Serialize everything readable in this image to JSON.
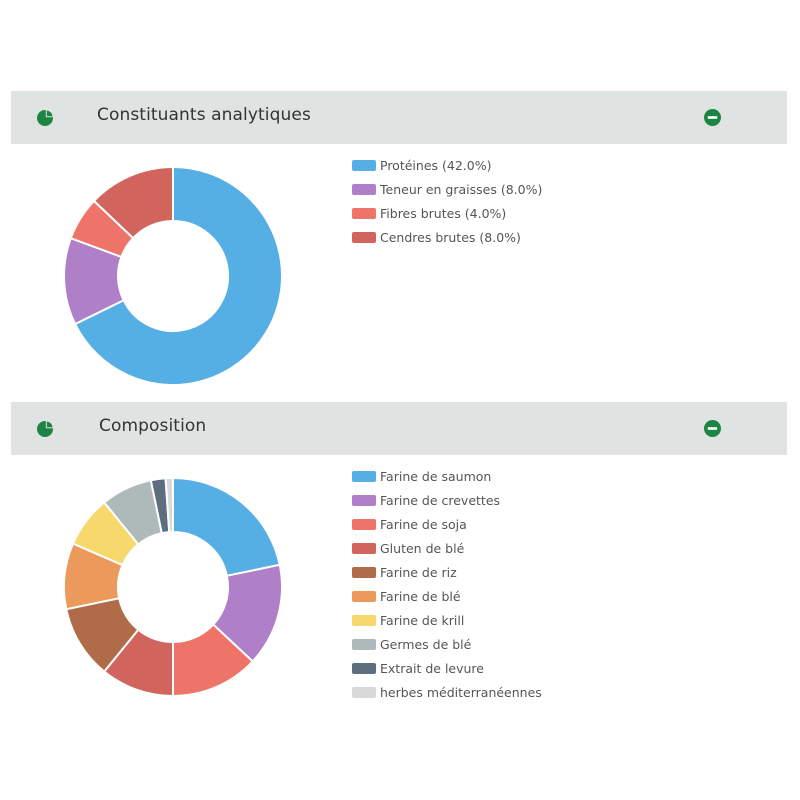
{
  "panels": [
    {
      "title": "Constituants analytiques",
      "icon": "pie-chart-icon",
      "collapse_icon": "minus-circle-icon",
      "icon_color": "#1e8443"
    },
    {
      "title": "Composition",
      "icon": "pie-chart-icon",
      "collapse_icon": "minus-circle-icon",
      "icon_color": "#1e8443"
    }
  ],
  "chart_data": [
    {
      "type": "pie",
      "donut": true,
      "categories": [
        "Protéines",
        "Teneur en graisses",
        "Fibres brutes",
        "Cendres brutes"
      ],
      "values": [
        42.0,
        8.0,
        4.0,
        8.0
      ],
      "legend_labels": [
        "Protéines (42.0%)",
        "Teneur en graisses (8.0%)",
        "Fibres brutes (4.0%)",
        "Cendres brutes (8.0%)"
      ],
      "colors": [
        "#55aee4",
        "#af7fc8",
        "#ee7469",
        "#d1655d"
      ],
      "legend_position": "right"
    },
    {
      "type": "pie",
      "donut": true,
      "categories": [
        "Farine de saumon",
        "Farine de crevettes",
        "Farine de soja",
        "Gluten de blé",
        "Farine de riz",
        "Farine de blé",
        "Farine de krill",
        "Germes de blé",
        "Extrait de levure",
        "herbes méditerranéennes"
      ],
      "values": [
        20,
        14,
        12,
        10,
        10,
        9,
        7,
        7,
        2,
        1
      ],
      "legend_labels": [
        "Farine de saumon",
        "Farine de crevettes",
        "Farine de soja",
        "Gluten de blé",
        "Farine de riz",
        "Farine de blé",
        "Farine de krill",
        "Germes de blé",
        "Extrait de levure",
        "herbes méditerranéennes"
      ],
      "colors": [
        "#55aee4",
        "#af7fc8",
        "#ee7469",
        "#d1655d",
        "#b06c48",
        "#ec9a5b",
        "#f6d86d",
        "#aebab9",
        "#5f6e7e",
        "#d9d9d9"
      ],
      "legend_position": "right"
    }
  ]
}
